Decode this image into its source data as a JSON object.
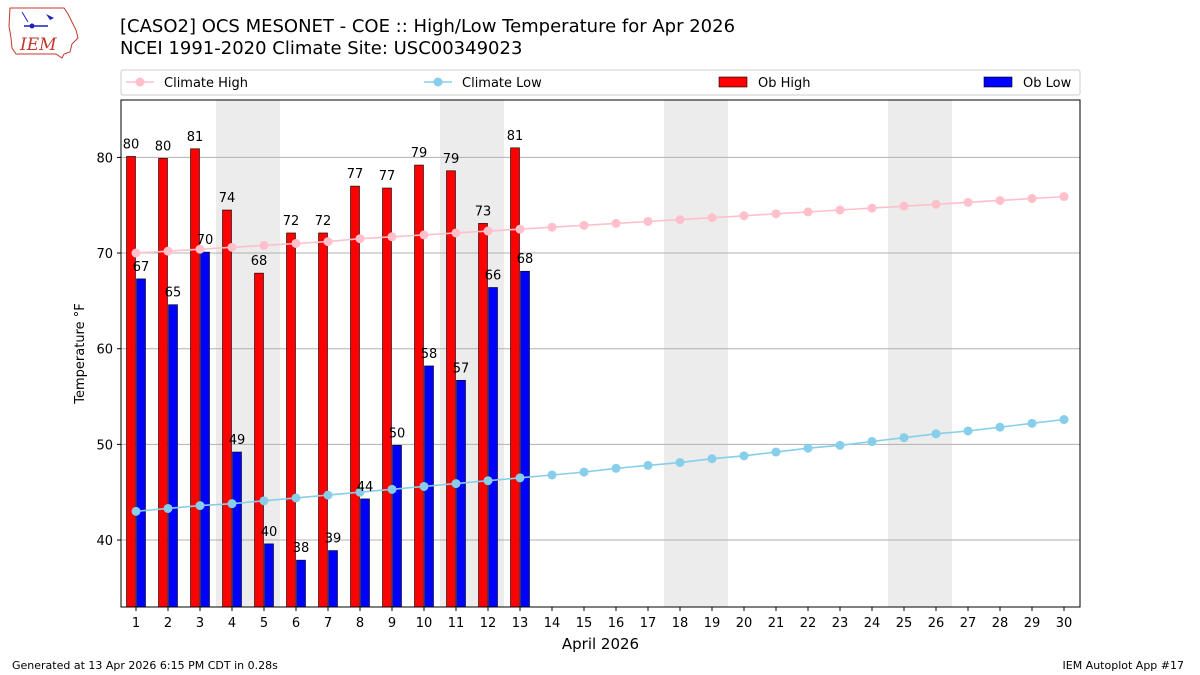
{
  "header": {
    "title_line1": "[CASO2] OCS MESONET - COE :: High/Low Temperature for Apr 2026",
    "title_line2": "NCEI 1991-2020 Climate Site: USC00349023",
    "logo_text": "IEM"
  },
  "footer": {
    "left": "Generated at 13 Apr 2026 6:15 PM CDT in 0.28s",
    "right": "IEM Autoplot App #17"
  },
  "chart_data": {
    "type": "bar",
    "xlabel": "April 2026",
    "ylabel": "Temperature °F",
    "ylim": [
      33,
      86
    ],
    "yticks": [
      40,
      50,
      60,
      70,
      80
    ],
    "grid": "y",
    "legend_position": "top",
    "days": [
      1,
      2,
      3,
      4,
      5,
      6,
      7,
      8,
      9,
      10,
      11,
      12,
      13,
      14,
      15,
      16,
      17,
      18,
      19,
      20,
      21,
      22,
      23,
      24,
      25,
      26,
      27,
      28,
      29,
      30
    ],
    "weekend_shading": [
      [
        4,
        5
      ],
      [
        11,
        12
      ],
      [
        18,
        19
      ],
      [
        25,
        26
      ]
    ],
    "series": [
      {
        "name": "Climate High",
        "kind": "line",
        "color": "#ffc0cb",
        "values": [
          70.0,
          70.2,
          70.4,
          70.6,
          70.8,
          71.0,
          71.2,
          71.5,
          71.7,
          71.9,
          72.1,
          72.3,
          72.5,
          72.7,
          72.9,
          73.1,
          73.3,
          73.5,
          73.7,
          73.9,
          74.1,
          74.3,
          74.5,
          74.7,
          74.9,
          75.1,
          75.3,
          75.5,
          75.7,
          75.9
        ]
      },
      {
        "name": "Climate Low",
        "kind": "line",
        "color": "#87ceeb",
        "values": [
          43.0,
          43.3,
          43.6,
          43.8,
          44.1,
          44.4,
          44.7,
          45.0,
          45.3,
          45.6,
          45.9,
          46.2,
          46.5,
          46.8,
          47.1,
          47.5,
          47.8,
          48.1,
          48.5,
          48.8,
          49.2,
          49.6,
          49.9,
          50.3,
          50.7,
          51.1,
          51.4,
          51.8,
          52.2,
          52.6
        ]
      },
      {
        "name": "Ob High",
        "kind": "bar",
        "color": "#ff0000",
        "values": [
          80.1,
          79.9,
          80.9,
          74.5,
          67.9,
          72.1,
          72.1,
          77.0,
          76.8,
          79.2,
          78.6,
          73.1,
          81.0
        ],
        "labels": [
          "80",
          "80",
          "81",
          "74",
          "68",
          "72",
          "72",
          "77",
          "77",
          "79",
          "79",
          "73",
          "81"
        ]
      },
      {
        "name": "Ob Low",
        "kind": "bar",
        "color": "#0000ff",
        "values": [
          67.3,
          64.6,
          70.1,
          49.2,
          39.6,
          37.9,
          38.9,
          44.3,
          49.9,
          58.2,
          56.7,
          66.4,
          68.1
        ],
        "labels": [
          "67",
          "65",
          "70",
          "49",
          "40",
          "38",
          "39",
          "44",
          "50",
          "58",
          "57",
          "66",
          "68"
        ]
      }
    ]
  }
}
